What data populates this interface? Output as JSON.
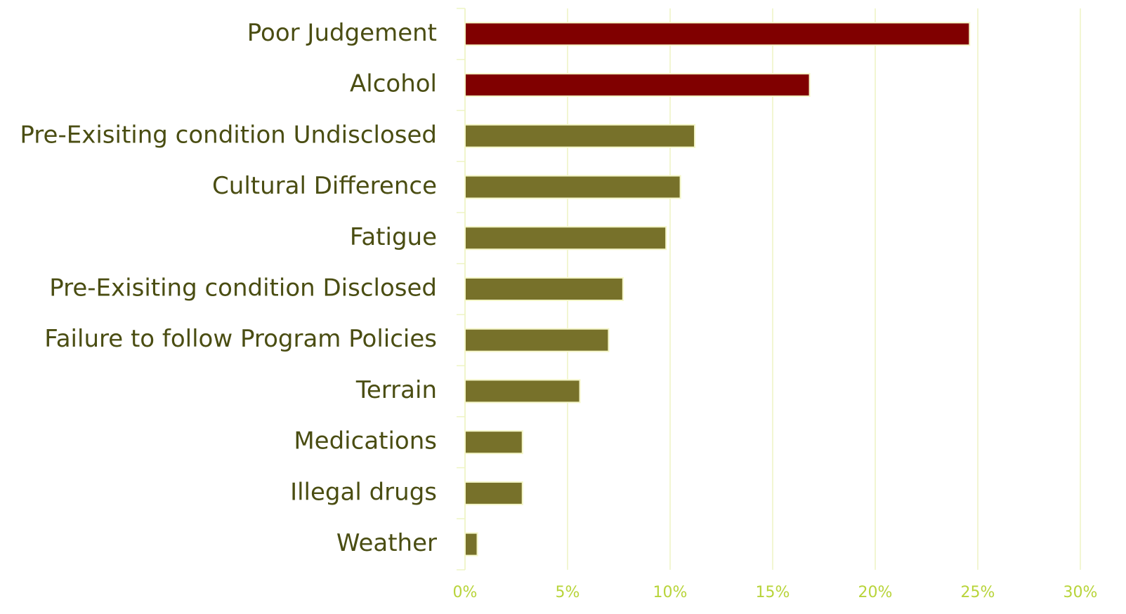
{
  "chart_data": {
    "type": "bar",
    "orientation": "horizontal",
    "categories": [
      "Poor Judgement",
      "Alcohol",
      "Pre-Exisiting condition Undisclosed",
      "Cultural Difference",
      "Fatigue",
      "Pre-Exisiting condition Disclosed",
      "Failure to follow Program Policies",
      "Terrain",
      "Medications",
      "Illegal drugs",
      "Weather"
    ],
    "values": [
      24.6,
      16.8,
      11.2,
      10.5,
      9.8,
      7.7,
      7.0,
      5.6,
      2.8,
      2.8,
      0.6
    ],
    "colors": [
      "#800000",
      "#800000",
      "#77712a",
      "#77712a",
      "#77712a",
      "#77712a",
      "#77712a",
      "#77712a",
      "#77712a",
      "#77712a",
      "#77712a"
    ],
    "xlim": [
      0,
      30
    ],
    "xticks": [
      {
        "value": 0,
        "label": "0%"
      },
      {
        "value": 5,
        "label": "5%"
      },
      {
        "value": 10,
        "label": "10%"
      },
      {
        "value": 15,
        "label": "15%"
      },
      {
        "value": 20,
        "label": "20%"
      },
      {
        "value": 25,
        "label": "25%"
      },
      {
        "value": 30,
        "label": "30%"
      }
    ],
    "grid": true
  }
}
